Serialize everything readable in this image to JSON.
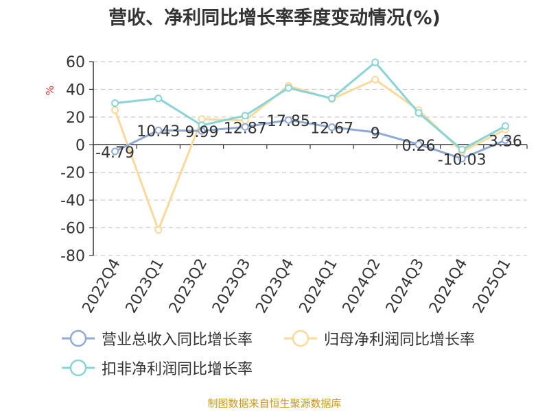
{
  "chart_data": {
    "type": "line",
    "title": "营收、净利同比增长率季度变动情况(%)",
    "ylabel": "%",
    "ylim": [
      -80,
      60
    ],
    "yticks": [
      60,
      40,
      20,
      0,
      -20,
      -40,
      -60,
      -80
    ],
    "grid": true,
    "legend_position": "bottom",
    "categories": [
      "2022Q4",
      "2023Q1",
      "2023Q2",
      "2023Q3",
      "2023Q4",
      "2024Q1",
      "2024Q2",
      "2024Q3",
      "2024Q4",
      "2025Q1"
    ],
    "series": [
      {
        "name": "营业总收入同比增长率",
        "color": "#8eaad6",
        "values": [
          -4.79,
          10.43,
          9.99,
          12.87,
          17.85,
          12.67,
          9,
          0.26,
          -10.03,
          3.36
        ],
        "labels": [
          "-4.79",
          "10.43",
          "9.99",
          "12.87",
          "17.85",
          "12.67",
          "9",
          "0.26",
          "-10.03",
          "3.36"
        ]
      },
      {
        "name": "归母净利润同比增长率",
        "color": "#fad99a",
        "values": [
          25,
          -61.5,
          18.5,
          17.5,
          42.5,
          33,
          47,
          25,
          -5,
          11
        ],
        "labels": []
      },
      {
        "name": "扣非净利润同比增长率",
        "color": "#88d4d6",
        "values": [
          30,
          33.5,
          14,
          21,
          41,
          33.5,
          59.5,
          23,
          -3.5,
          13.5
        ],
        "labels": []
      }
    ]
  },
  "footer": {
    "source": "制图数据来自恒生聚源数据库"
  }
}
